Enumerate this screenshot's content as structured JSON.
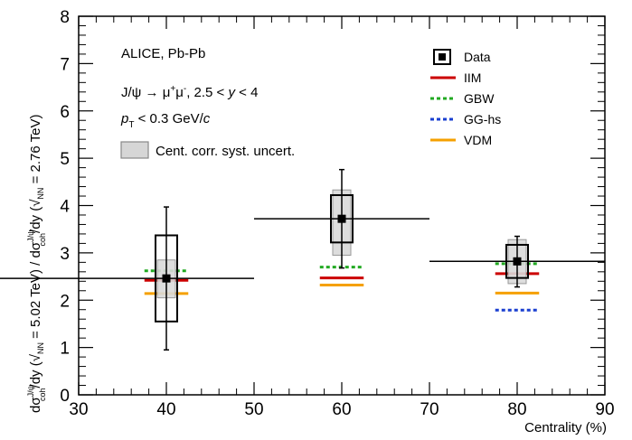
{
  "chart_data": {
    "type": "scatter",
    "xlabel": "Centrality (%)",
    "ylabel_left": {
      "main": "dσ",
      "sup1": "J/ψ",
      "sub1": "coh",
      "mid": "/dy (√",
      "s_sub": "NN",
      "s_val": " = 5.02 TeV) / dσ",
      "sup2": "J/ψ",
      "sub2": "coh",
      "end": "/dy (√",
      "s_sub2": "NN",
      "s_val2": " = 2.76 TeV)"
    },
    "xlim": [
      30,
      90
    ],
    "ylim": [
      0,
      8
    ],
    "x_ticks": [
      "30",
      "40",
      "50",
      "60",
      "70",
      "80",
      "90"
    ],
    "y_ticks": [
      "0",
      "1",
      "2",
      "3",
      "4",
      "5",
      "6",
      "7",
      "8"
    ],
    "annotations": {
      "line1": "ALICE, Pb-Pb",
      "line2_a": "J/ψ → μ",
      "line2_sup1": "+",
      "line2_b": "μ",
      "line2_sup2": "-",
      "line2_c": ", 2.5 < ",
      "line2_y": "y",
      "line2_d": " < 4",
      "line3_p": "p",
      "line3_sub": "T",
      "line3_rest": " < 0.3 GeV/",
      "line3_c": "c",
      "line4": "Cent. corr. syst. uncert."
    },
    "legend": [
      {
        "label": "Data",
        "style": "box-marker",
        "color": "#000000"
      },
      {
        "label": "IIM",
        "style": "solid",
        "color": "#cc0000"
      },
      {
        "label": "GBW",
        "style": "dotted",
        "color": "#22aa22"
      },
      {
        "label": "GG-hs",
        "style": "dotted",
        "color": "#1a3fd0"
      },
      {
        "label": "VDM",
        "style": "solid",
        "color": "#f5a000"
      }
    ],
    "data": [
      {
        "x": 40,
        "x_low": 10,
        "x_high": 50,
        "y": 2.46,
        "stat_low": 0.95,
        "stat_high": 3.97,
        "syst_low": 1.55,
        "syst_high": 3.37,
        "cent_low": 2.05,
        "cent_high": 2.85
      },
      {
        "x": 60,
        "x_low": 50,
        "x_high": 70,
        "y": 3.72,
        "stat_low": 2.68,
        "stat_high": 4.76,
        "syst_low": 3.22,
        "syst_high": 4.22,
        "cent_low": 2.95,
        "cent_high": 4.33
      },
      {
        "x": 80,
        "x_low": 70,
        "x_high": 90,
        "y": 2.82,
        "stat_low": 2.28,
        "stat_high": 3.35,
        "syst_low": 2.47,
        "syst_high": 3.17,
        "cent_low": 2.35,
        "cent_high": 3.28
      }
    ],
    "models": [
      {
        "name": "IIM",
        "color": "#cc0000",
        "dash": "solid",
        "points": [
          {
            "x": 40,
            "y": 2.42
          },
          {
            "x": 60,
            "y": 2.47
          },
          {
            "x": 80,
            "y": 2.56
          }
        ]
      },
      {
        "name": "GBW",
        "color": "#22aa22",
        "dash": "dotted",
        "points": [
          {
            "x": 40,
            "y": 2.62
          },
          {
            "x": 60,
            "y": 2.7
          },
          {
            "x": 80,
            "y": 2.77
          }
        ]
      },
      {
        "name": "GG-hs",
        "color": "#1a3fd0",
        "dash": "dotted",
        "points": [
          {
            "x": 80,
            "y": 1.79
          }
        ]
      },
      {
        "name": "VDM",
        "color": "#f5a000",
        "dash": "solid",
        "points": [
          {
            "x": 40,
            "y": 2.14
          },
          {
            "x": 60,
            "y": 2.32
          },
          {
            "x": 80,
            "y": 2.15
          }
        ]
      }
    ]
  }
}
